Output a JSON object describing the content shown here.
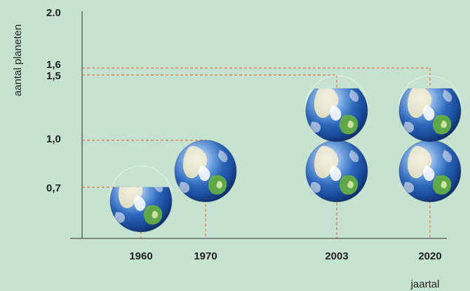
{
  "chart_data": {
    "type": "pictograph",
    "title": "",
    "xlabel": "jaartal",
    "ylabel": "aantal planeten",
    "x_tick_labels": [
      "1960",
      "1970",
      "2003",
      "2020"
    ],
    "y_tick_labels": [
      "0,7",
      "1,0",
      "1,5",
      "1,6",
      "2.0"
    ],
    "y_tick_values": [
      0.7,
      1.0,
      1.5,
      1.6,
      2.0
    ],
    "series": [
      {
        "x": [
          "1960",
          "1970",
          "2003",
          "2020"
        ],
        "values": [
          0.7,
          1.0,
          1.5,
          1.6
        ]
      }
    ],
    "colors": {
      "background": "#c6e3d2",
      "axis": "#555555",
      "guide": "#e8734f",
      "earth_ocean": "#1f56b0",
      "earth_land": "#5fa84a"
    },
    "icon": "earth-globe-icon"
  }
}
